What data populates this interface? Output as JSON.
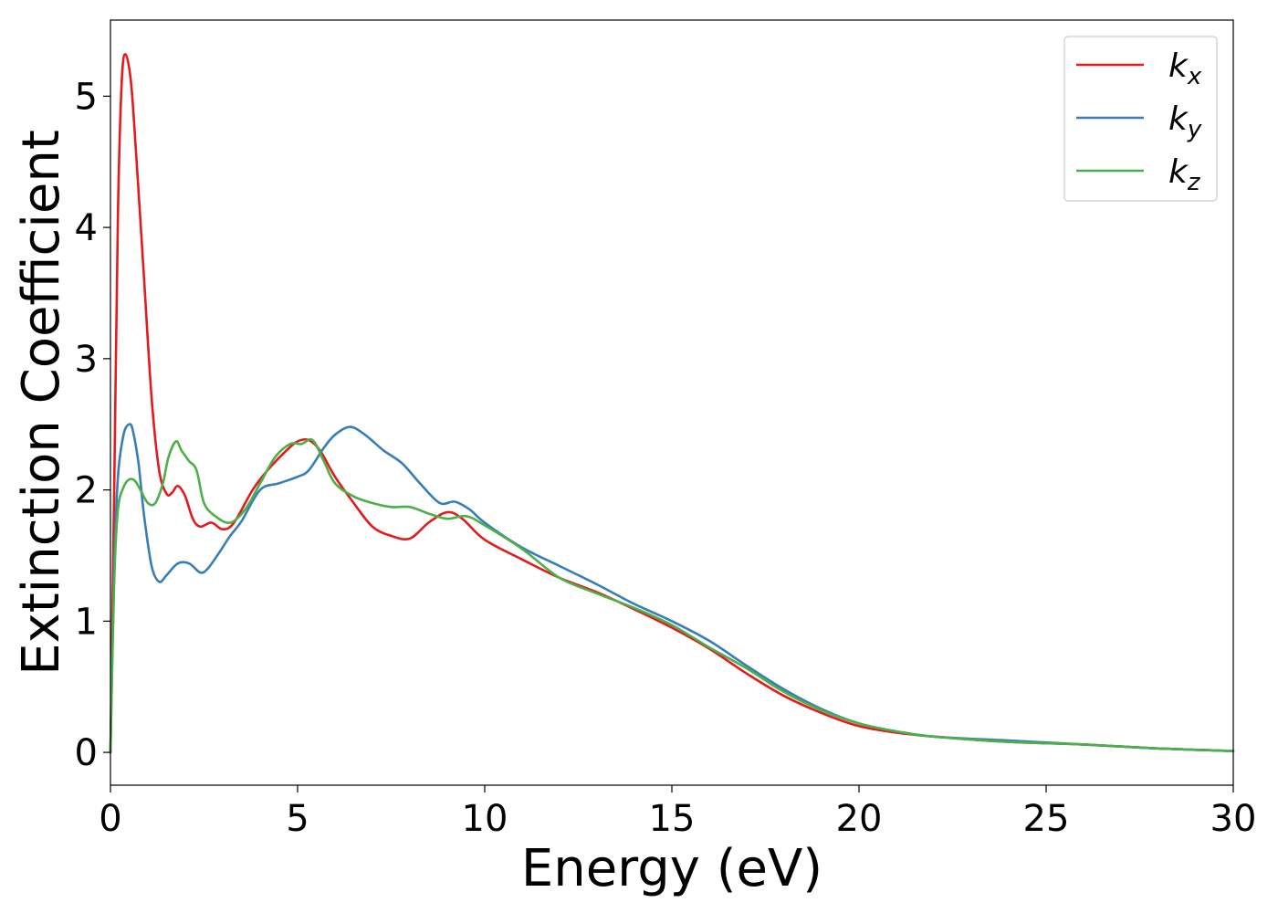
{
  "chart_data": {
    "type": "line",
    "xlabel": "Energy (eV)",
    "ylabel": "Extinction Coefficient",
    "xlim": [
      0,
      30
    ],
    "ylim": [
      -0.25,
      5.58
    ],
    "xticks": [
      0,
      5,
      10,
      15,
      20,
      25,
      30
    ],
    "yticks": [
      0,
      1,
      2,
      3,
      4,
      5
    ],
    "grid": false,
    "legend_position": "top-right",
    "series": [
      {
        "name": "k_x",
        "label_main": "k",
        "label_sub": "x",
        "color": "#e41a1c",
        "x": [
          0,
          0.1,
          0.2,
          0.3,
          0.4,
          0.55,
          0.7,
          0.9,
          1.1,
          1.3,
          1.5,
          1.65,
          1.8,
          2.0,
          2.2,
          2.4,
          2.7,
          3.0,
          3.3,
          3.8,
          4.2,
          4.7,
          5.0,
          5.3,
          5.6,
          6.0,
          6.5,
          7.0,
          7.5,
          8.0,
          8.5,
          9.0,
          9.4,
          10.0,
          11.0,
          12.0,
          13.0,
          14.0,
          15.0,
          16.0,
          17.0,
          18.0,
          19.0,
          20.0,
          21.0,
          22.0,
          24.0,
          26.0,
          28.0,
          30.0
        ],
        "y": [
          0,
          2.0,
          4.1,
          5.1,
          5.32,
          5.1,
          4.5,
          3.6,
          2.7,
          2.15,
          1.97,
          1.98,
          2.03,
          1.95,
          1.78,
          1.72,
          1.75,
          1.7,
          1.75,
          2.0,
          2.15,
          2.3,
          2.37,
          2.38,
          2.3,
          2.1,
          1.9,
          1.72,
          1.65,
          1.63,
          1.75,
          1.83,
          1.78,
          1.62,
          1.47,
          1.33,
          1.22,
          1.09,
          0.95,
          0.79,
          0.6,
          0.43,
          0.3,
          0.2,
          0.15,
          0.12,
          0.08,
          0.06,
          0.03,
          0.01
        ]
      },
      {
        "name": "k_y",
        "label_main": "k",
        "label_sub": "y",
        "color": "#377eb8",
        "x": [
          0,
          0.1,
          0.2,
          0.35,
          0.5,
          0.6,
          0.75,
          0.9,
          1.1,
          1.3,
          1.5,
          1.8,
          2.1,
          2.4,
          2.6,
          2.9,
          3.2,
          3.5,
          4.0,
          4.5,
          5.0,
          5.3,
          5.7,
          6.0,
          6.4,
          6.8,
          7.3,
          7.8,
          8.3,
          8.8,
          9.2,
          9.6,
          10.0,
          11.0,
          12.0,
          13.0,
          14.0,
          15.0,
          16.0,
          17.0,
          18.0,
          19.0,
          20.0,
          21.0,
          22.0,
          24.0,
          26.0,
          28.0,
          30.0
        ],
        "y": [
          0,
          1.4,
          2.1,
          2.42,
          2.5,
          2.45,
          2.2,
          1.8,
          1.42,
          1.3,
          1.35,
          1.44,
          1.44,
          1.37,
          1.4,
          1.52,
          1.65,
          1.76,
          2.0,
          2.05,
          2.1,
          2.15,
          2.32,
          2.42,
          2.48,
          2.42,
          2.3,
          2.2,
          2.04,
          1.9,
          1.91,
          1.85,
          1.75,
          1.56,
          1.42,
          1.28,
          1.13,
          1.0,
          0.85,
          0.66,
          0.48,
          0.33,
          0.22,
          0.16,
          0.12,
          0.09,
          0.06,
          0.03,
          0.01
        ]
      },
      {
        "name": "k_z",
        "label_main": "k",
        "label_sub": "z",
        "color": "#4daf4a",
        "x": [
          0,
          0.1,
          0.2,
          0.35,
          0.5,
          0.65,
          0.8,
          1.0,
          1.2,
          1.4,
          1.55,
          1.75,
          1.9,
          2.1,
          2.3,
          2.5,
          2.8,
          3.2,
          3.6,
          4.0,
          4.4,
          4.8,
          5.1,
          5.4,
          5.7,
          6.0,
          6.5,
          7.0,
          7.5,
          8.0,
          8.5,
          9.0,
          9.5,
          10.0,
          11.0,
          12.0,
          13.0,
          14.0,
          15.0,
          16.0,
          17.0,
          18.0,
          19.0,
          20.0,
          21.0,
          22.0,
          24.0,
          26.0,
          28.0,
          30.0
        ],
        "y": [
          0,
          1.3,
          1.85,
          2.02,
          2.08,
          2.07,
          2.0,
          1.9,
          1.9,
          2.05,
          2.25,
          2.37,
          2.3,
          2.22,
          2.15,
          1.9,
          1.8,
          1.75,
          1.85,
          2.05,
          2.25,
          2.35,
          2.35,
          2.38,
          2.22,
          2.05,
          1.95,
          1.9,
          1.87,
          1.87,
          1.82,
          1.78,
          1.8,
          1.73,
          1.55,
          1.33,
          1.21,
          1.1,
          0.97,
          0.8,
          0.64,
          0.46,
          0.32,
          0.22,
          0.16,
          0.12,
          0.08,
          0.06,
          0.03,
          0.01
        ]
      }
    ]
  }
}
